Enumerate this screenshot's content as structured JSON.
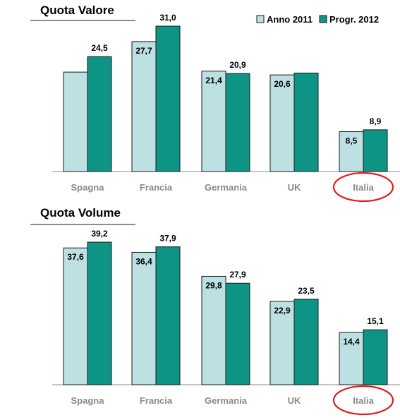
{
  "colors": {
    "anno_2011": "#bde0e2",
    "progr_2012": "#0e9485",
    "bar_stroke": "#1a1a1a",
    "highlight_ellipse": "#e21b1b",
    "title_underline": "#8c8c8c"
  },
  "legend": {
    "items": [
      {
        "label": "Anno 2011",
        "color": "#bde0e2"
      },
      {
        "label": "Progr. 2012",
        "color": "#0e9485"
      }
    ],
    "placement": "top-right"
  },
  "highlight": {
    "category": "Italia",
    "shape": "ellipse",
    "color": "#e21b1b"
  },
  "chart_data": [
    {
      "type": "bar",
      "title": "Quota Valore",
      "categories": [
        "Spagna",
        "Francia",
        "Germania",
        "UK",
        "Italia"
      ],
      "series": [
        {
          "name": "Anno 2011",
          "values": [
            21.2,
            27.7,
            21.4,
            20.6,
            8.5
          ],
          "labels": [
            "",
            "27,7",
            "21,4",
            "20,6",
            "8,5"
          ]
        },
        {
          "name": "Progr. 2012",
          "values": [
            24.5,
            31.0,
            20.9,
            21.0,
            8.9
          ],
          "labels": [
            "24,5",
            "31,0",
            "20,9",
            "",
            "8,9"
          ]
        }
      ],
      "ylim": [
        0,
        33
      ],
      "grid": false,
      "xlabel": "",
      "ylabel": ""
    },
    {
      "type": "bar",
      "title": "Quota Volume",
      "categories": [
        "Spagna",
        "Francia",
        "Germania",
        "UK",
        "Italia"
      ],
      "series": [
        {
          "name": "Anno 2011",
          "values": [
            37.6,
            36.4,
            29.8,
            22.9,
            14.4
          ],
          "labels": [
            "37,6",
            "36,4",
            "29,8",
            "22,9",
            "14,4"
          ]
        },
        {
          "name": "Progr. 2012",
          "values": [
            39.2,
            37.9,
            27.9,
            23.5,
            15.1
          ],
          "labels": [
            "39,2",
            "37,9",
            "27,9",
            "23,5",
            "15,1"
          ]
        }
      ],
      "ylim": [
        0,
        42
      ],
      "grid": false,
      "xlabel": "",
      "ylabel": ""
    }
  ]
}
